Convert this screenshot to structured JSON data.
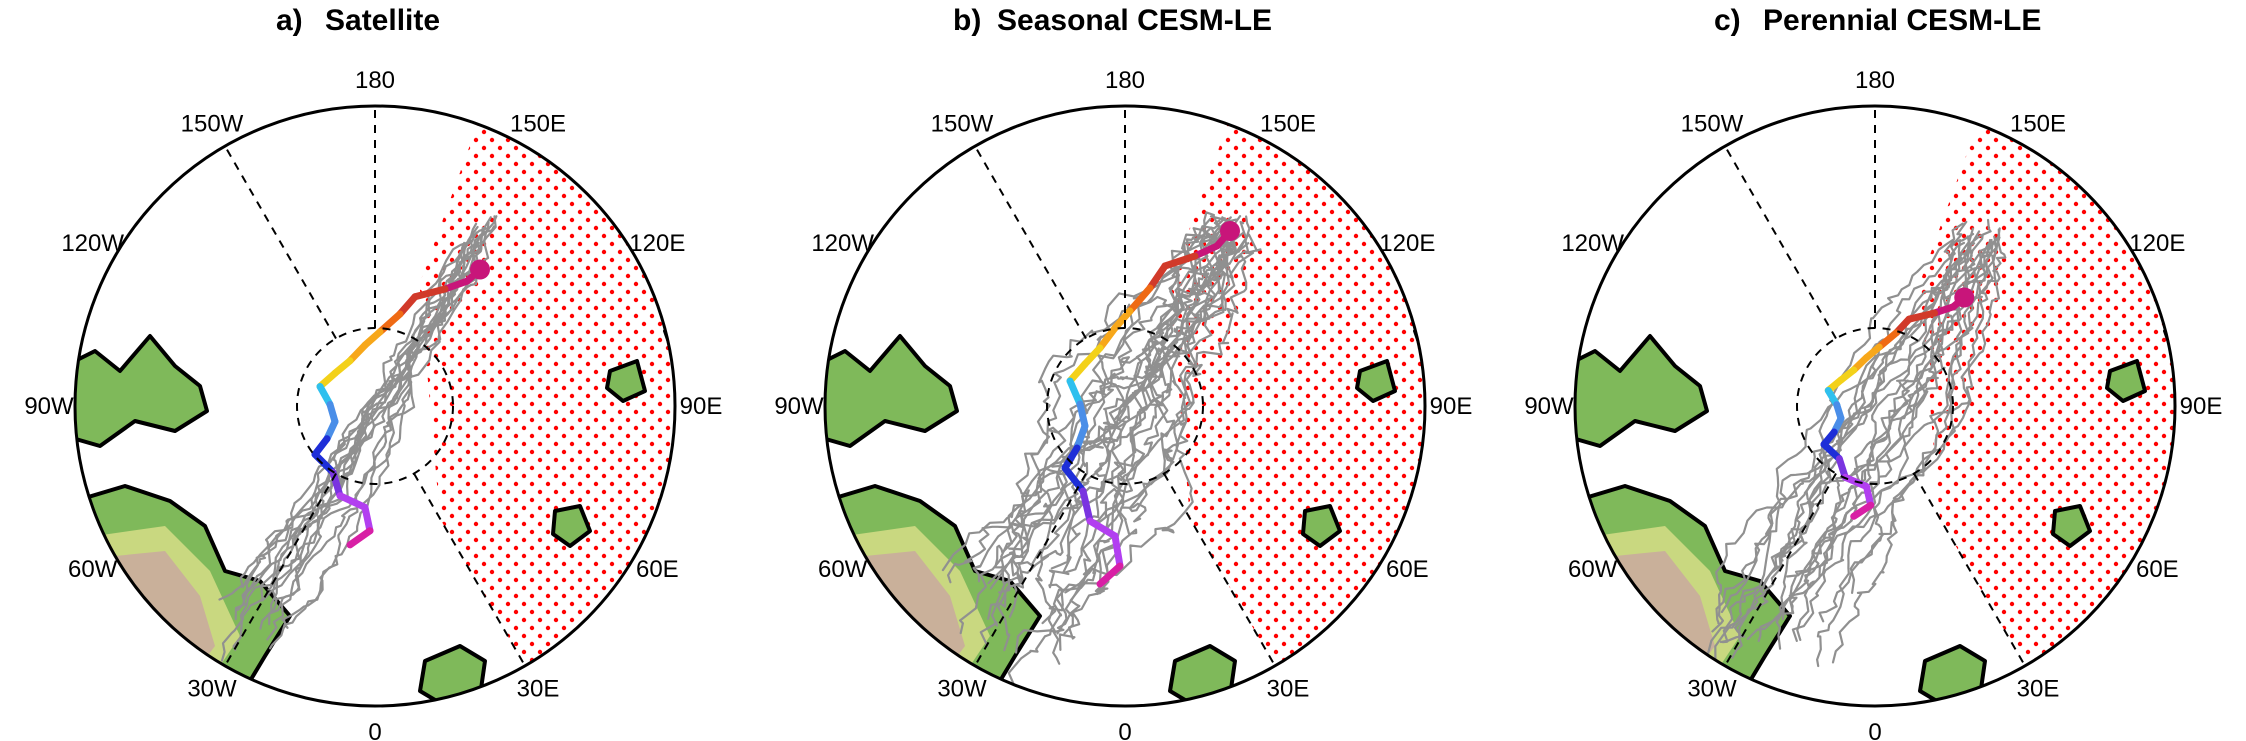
{
  "panels": [
    {
      "id": "a",
      "letter": "a)",
      "title": "Satellite",
      "cx": 375,
      "cy": 406,
      "member_count": 16,
      "spread": 0.55
    },
    {
      "id": "b",
      "letter": "b)",
      "title": "Seasonal CESM-LE",
      "cx": 1125,
      "cy": 406,
      "member_count": 24,
      "spread": 1.0
    },
    {
      "id": "c",
      "letter": "c)",
      "title": "Perennial CESM-LE",
      "cx": 1875,
      "cy": 406,
      "member_count": 22,
      "spread": 0.7
    }
  ],
  "longitude_labels": [
    "180",
    "150E",
    "120E",
    "90E",
    "60E",
    "30E",
    "0",
    "30W",
    "60W",
    "90W",
    "120W",
    "150W"
  ],
  "colors": {
    "member_tracks": "#909090",
    "start_marker": "#c8157a",
    "stipple": "#ff0000",
    "land": "#7fb95a",
    "land_outline": "#000000",
    "mean_track_gradient": [
      "#c8157a",
      "#d13a2a",
      "#ef6a14",
      "#f7a71a",
      "#f3d11a",
      "#2fc0ee",
      "#4a8ee8",
      "#1e2ed8",
      "#7a34e0",
      "#b23ff0",
      "#d81fa5"
    ]
  },
  "map": {
    "projection": "north-polar-stereographic",
    "stippled_sector": "eastern hemisphere, roughly 30E to 160E",
    "grid": "dashed meridians and central circle"
  }
}
